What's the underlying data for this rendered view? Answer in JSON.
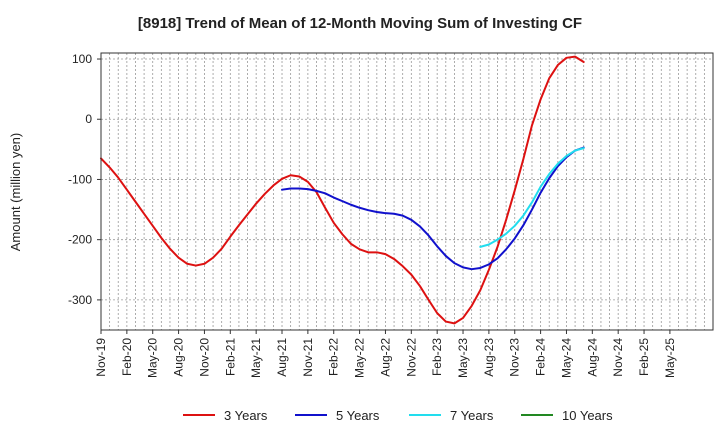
{
  "chart_data": {
    "type": "line",
    "title": "[8918]  Trend of Mean of 12-Month Moving Sum of Investing CF",
    "ylabel": "Amount (million yen)",
    "xlabel": "",
    "ylim": [
      -350,
      110
    ],
    "yticks": [
      100,
      0,
      -100,
      -200,
      -300
    ],
    "x_months": [
      "Nov-19",
      "Dec-19",
      "Jan-20",
      "Feb-20",
      "Mar-20",
      "Apr-20",
      "May-20",
      "Jun-20",
      "Jul-20",
      "Aug-20",
      "Sep-20",
      "Oct-20",
      "Nov-20",
      "Dec-20",
      "Jan-21",
      "Feb-21",
      "Mar-21",
      "Apr-21",
      "May-21",
      "Jun-21",
      "Jul-21",
      "Aug-21",
      "Sep-21",
      "Oct-21",
      "Nov-21",
      "Dec-21",
      "Jan-22",
      "Feb-22",
      "Mar-22",
      "Apr-22",
      "May-22",
      "Jun-22",
      "Jul-22",
      "Aug-22",
      "Sep-22",
      "Oct-22",
      "Nov-22",
      "Dec-22",
      "Jan-23",
      "Feb-23",
      "Mar-23",
      "Apr-23",
      "May-23",
      "Jun-23",
      "Jul-23",
      "Aug-23",
      "Sep-23",
      "Oct-23",
      "Nov-23",
      "Dec-23",
      "Jan-24",
      "Feb-24",
      "Mar-24",
      "Apr-24",
      "May-24",
      "Jun-24",
      "Jul-24",
      "Aug-24",
      "Sep-24",
      "Oct-24",
      "Nov-24",
      "Dec-24",
      "Jan-25",
      "Feb-25",
      "Mar-25",
      "Apr-25",
      "May-25",
      "Jun-25",
      "Jul-25",
      "Aug-25",
      "Sep-25",
      "Oct-25"
    ],
    "tick_labels": [
      "Nov-19",
      "Feb-20",
      "May-20",
      "Aug-20",
      "Nov-20",
      "Feb-21",
      "May-21",
      "Aug-21",
      "Nov-21",
      "Feb-22",
      "May-22",
      "Aug-22",
      "Nov-22",
      "Feb-23",
      "May-23",
      "Aug-23",
      "Nov-23",
      "Feb-24",
      "May-24",
      "Aug-24",
      "Nov-24",
      "Feb-25",
      "May-25"
    ],
    "series": [
      {
        "name": "3 Years",
        "color": "#dd1111",
        "start": "Nov-19",
        "values": [
          -65,
          -80,
          -97,
          -117,
          -137,
          -157,
          -177,
          -197,
          -215,
          -230,
          -240,
          -243,
          -240,
          -230,
          -215,
          -195,
          -176,
          -158,
          -140,
          -124,
          -110,
          -99,
          -93,
          -95,
          -104,
          -121,
          -147,
          -172,
          -191,
          -207,
          -216,
          -221,
          -221,
          -224,
          -232,
          -244,
          -258,
          -277,
          -300,
          -322,
          -336,
          -339,
          -330,
          -310,
          -284,
          -250,
          -212,
          -167,
          -118,
          -66,
          -10,
          33,
          68,
          90,
          102,
          104,
          95
        ]
      },
      {
        "name": "5 Years",
        "color": "#1111cc",
        "start": "Aug-21",
        "values": [
          -117,
          -115,
          -115,
          -116,
          -119,
          -123,
          -130,
          -136,
          -142,
          -147,
          -151,
          -154,
          -156,
          -157,
          -160,
          -167,
          -178,
          -193,
          -211,
          -227,
          -239,
          -246,
          -249,
          -247,
          -241,
          -231,
          -216,
          -198,
          -176,
          -150,
          -122,
          -98,
          -78,
          -63,
          -52,
          -47
        ]
      },
      {
        "name": "7 Years",
        "color": "#22ddee",
        "start": "Jul-23",
        "values": [
          -212,
          -208,
          -200,
          -190,
          -177,
          -160,
          -138,
          -112,
          -91,
          -74,
          -61,
          -52,
          -48
        ]
      },
      {
        "name": "10 Years",
        "color": "#228822",
        "start": "Nov-19",
        "values": []
      }
    ]
  }
}
